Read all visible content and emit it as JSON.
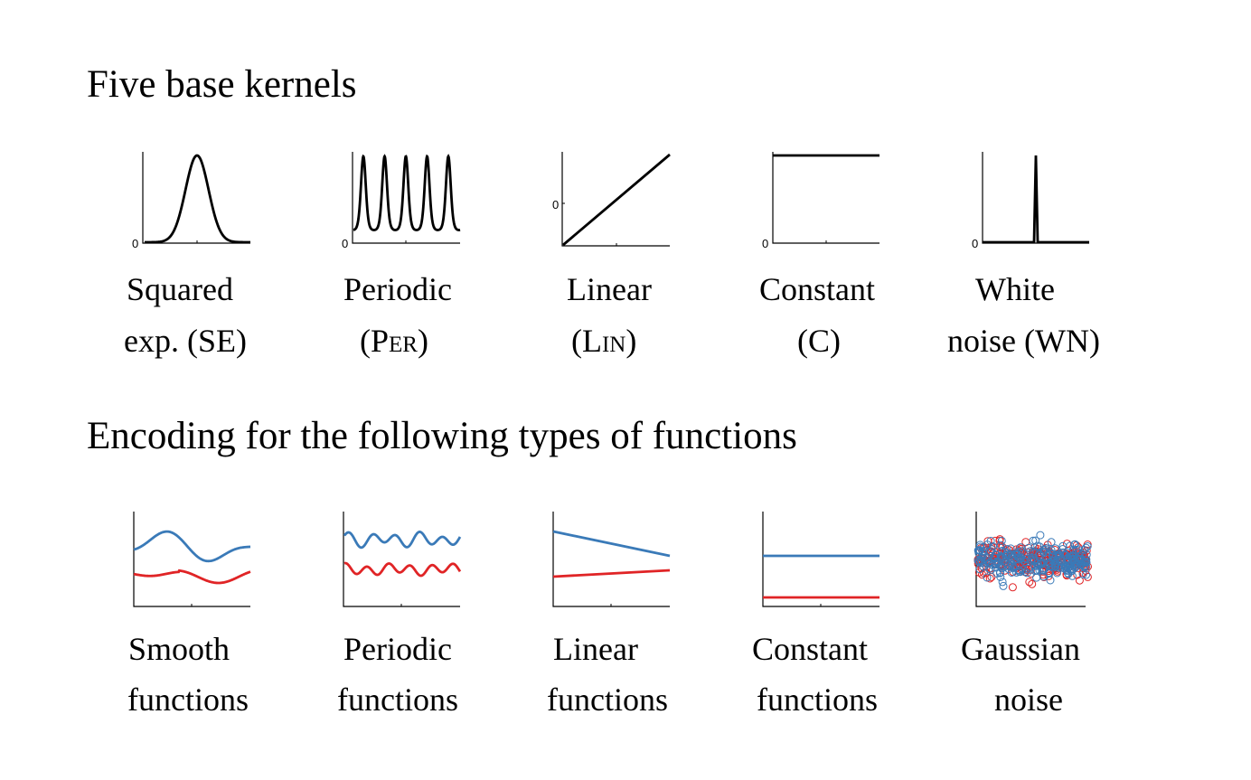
{
  "headings": {
    "kernels": "Five base kernels",
    "encoding": "Encoding for the following types of functions"
  },
  "kernels": [
    {
      "id": "se",
      "line1": "Squared",
      "line2": "exp. (SE)",
      "zero_tick": "0"
    },
    {
      "id": "per",
      "line1": "Periodic",
      "line2_pre": "(P",
      "line2_sc": "er",
      "line2_post": ")",
      "zero_tick": "0"
    },
    {
      "id": "lin",
      "line1": "Linear",
      "line2_pre": "(L",
      "line2_sc": "in",
      "line2_post": ")",
      "zero_tick": "0"
    },
    {
      "id": "c",
      "line1": "Constant",
      "line2": "(C)",
      "zero_tick": "0"
    },
    {
      "id": "wn",
      "line1": "White",
      "line2": "noise (WN)",
      "zero_tick": "0"
    }
  ],
  "functions": [
    {
      "id": "smooth",
      "line1": "Smooth",
      "line2": "functions"
    },
    {
      "id": "periodic",
      "line1": "Periodic",
      "line2": "functions"
    },
    {
      "id": "linear",
      "line1": "Linear",
      "line2": "functions"
    },
    {
      "id": "constant",
      "line1": "Constant",
      "line2": "functions"
    },
    {
      "id": "gaussian",
      "line1": "Gaussian",
      "line2": "noise"
    }
  ],
  "colors": {
    "kernel_line": "#000000",
    "axis": "#000000",
    "series_blue": "#3a7ab8",
    "series_red": "#e02426"
  }
}
